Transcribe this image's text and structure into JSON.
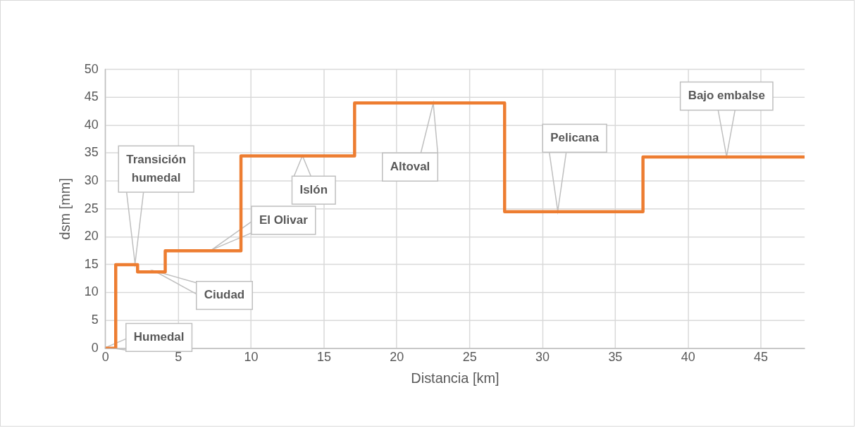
{
  "chart_data": {
    "type": "step",
    "xlabel": "Distancia [km]",
    "ylabel": "dsm [mm]",
    "x": [
      0,
      0.7,
      2.2,
      4.1,
      9.3,
      17.1,
      27.4,
      36.9,
      48
    ],
    "series": [
      {
        "color": "#ed7d31",
        "values": [
          0,
          15,
          13.7,
          17.5,
          34.5,
          44,
          24.5,
          34.3,
          34.3
        ]
      }
    ],
    "xlim": [
      0,
      48
    ],
    "xticks": [
      0,
      5,
      10,
      15,
      20,
      25,
      30,
      35,
      40,
      45
    ],
    "ylim": [
      0,
      50
    ],
    "yticks": [
      0,
      5,
      10,
      15,
      20,
      25,
      30,
      35,
      40,
      45,
      50
    ],
    "grid": true,
    "legend": false,
    "line_style": "solid",
    "marker": "none",
    "annotations": [
      "Humedal",
      "Transición\nhumedal",
      "Ciudad",
      "El Olivar",
      "Islón",
      "Altoval",
      "Pelicana",
      "Bajo embalse"
    ]
  }
}
